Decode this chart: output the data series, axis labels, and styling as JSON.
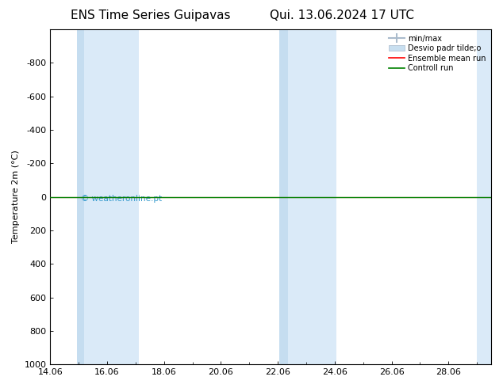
{
  "title_left": "ENS Time Series Guipavas",
  "title_right": "Qui. 13.06.2024 17 UTC",
  "ylabel": "Temperature 2m (°C)",
  "background_color": "#ffffff",
  "plot_bg_color": "#ffffff",
  "ylim_bottom": 1000,
  "ylim_top": -1000,
  "yticks": [
    -800,
    -600,
    -400,
    -200,
    0,
    200,
    400,
    600,
    800,
    1000
  ],
  "x_min": 14.0,
  "x_max": 29.5,
  "xtick_labels": [
    "14.06",
    "16.06",
    "18.06",
    "20.06",
    "22.06",
    "24.06",
    "26.06",
    "28.06"
  ],
  "xtick_positions": [
    14,
    16,
    18,
    20,
    22,
    24,
    26,
    28
  ],
  "shaded_bands": [
    {
      "xmin": 14.95,
      "xmax": 15.2,
      "color": "#c5ddf0"
    },
    {
      "xmin": 15.2,
      "xmax": 17.1,
      "color": "#daeaf8"
    },
    {
      "xmin": 22.05,
      "xmax": 22.35,
      "color": "#c5ddf0"
    },
    {
      "xmin": 22.35,
      "xmax": 24.05,
      "color": "#daeaf8"
    },
    {
      "xmin": 29.0,
      "xmax": 29.5,
      "color": "#daeaf8"
    }
  ],
  "green_line_color": "#008000",
  "red_line_color": "#ff0000",
  "watermark": "© weatheronline.pt",
  "watermark_color": "#3399cc",
  "legend_labels": [
    "min/max",
    "Desvio padr tilde;o",
    "Ensemble mean run",
    "Controll run"
  ],
  "legend_minmax_color": "#aabbcc",
  "legend_desvio_color": "#c8dff0",
  "legend_mean_color": "#ff0000",
  "legend_control_color": "#008000",
  "tick_color": "#000000",
  "font_size": 8,
  "title_font_size": 11
}
